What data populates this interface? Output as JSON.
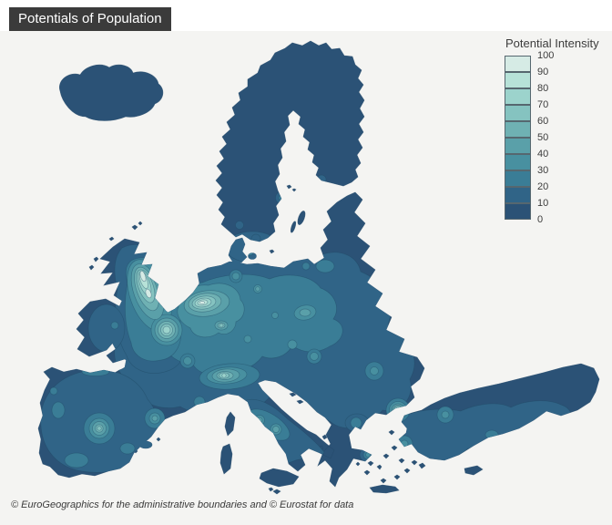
{
  "header": {
    "title": "Potentials of Population"
  },
  "legend": {
    "title": "Potential Intensity",
    "ticks": [
      "100",
      "90",
      "80",
      "70",
      "60",
      "50",
      "40",
      "30",
      "20",
      "10",
      "0"
    ],
    "scale_colors": [
      "#2b5276",
      "#306487",
      "#3a7d96",
      "#4890a0",
      "#5aa0a9",
      "#6fb1b3",
      "#85c3c0",
      "#9cd3cc",
      "#b7e2d8",
      "#d6ebe5"
    ]
  },
  "footer": {
    "attribution": "© EuroGeographics for the administrative boundaries and © Eurostat for data"
  },
  "map": {
    "background": "#f4f4f2",
    "coast_stroke": "#24496a",
    "contour_stroke": "#1e4964"
  },
  "chart_data": {
    "type": "filled-contour-map",
    "title": "Potentials of Population",
    "legend_title": "Potential Intensity",
    "geography": "Europe",
    "scale": {
      "min": 0,
      "max": 100,
      "step": 10
    },
    "palette_low_to_high": [
      "#2b5276",
      "#306487",
      "#3a7d96",
      "#4890a0",
      "#5aa0a9",
      "#6fb1b3",
      "#85c3c0",
      "#9cd3cc",
      "#b7e2d8",
      "#d6ebe5"
    ],
    "high_intensity_areas_depicted": [
      "Southeast England / London",
      "Benelux–Ruhr region",
      "Paris region",
      "Po Valley / Milan",
      "Madrid",
      "Istanbul"
    ],
    "low_intensity_areas_depicted": [
      "Iceland",
      "Scandinavia",
      "Greece mainland",
      "Eastern fringe"
    ]
  }
}
